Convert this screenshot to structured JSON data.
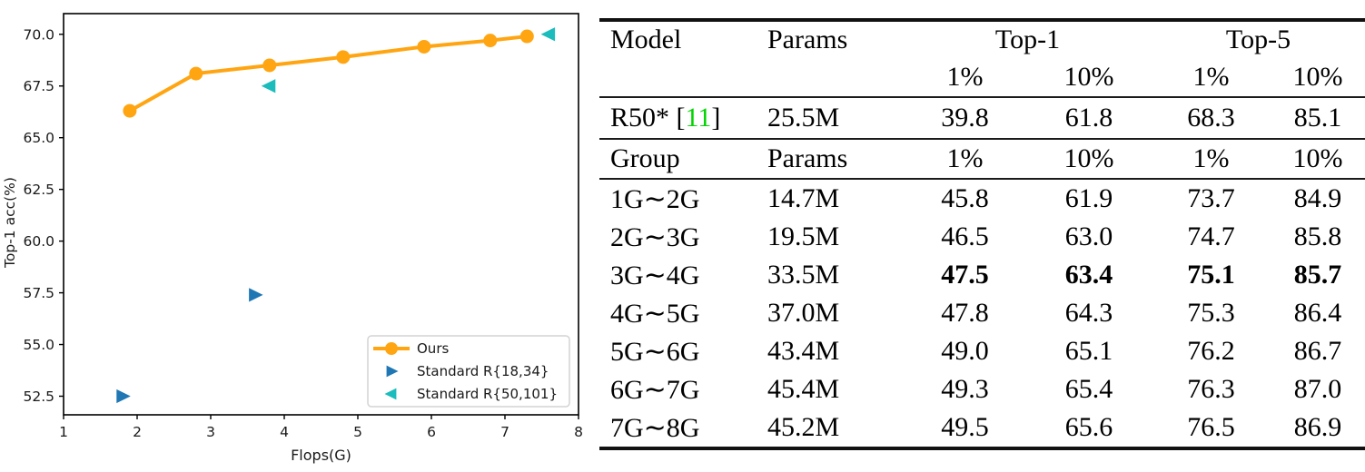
{
  "chart_data": {
    "type": "line",
    "title": "",
    "xlabel": "Flops(G)",
    "ylabel": "Top-1 acc(%)",
    "xlim": [
      1,
      8
    ],
    "ylim": [
      51.6,
      71.0
    ],
    "x_ticks": [
      1,
      2,
      3,
      4,
      5,
      6,
      7,
      8
    ],
    "x_tick_labels": [
      "1",
      "2",
      "3",
      "4",
      "5",
      "6",
      "7",
      "8"
    ],
    "y_ticks": [
      52.5,
      55.0,
      57.5,
      60.0,
      62.5,
      65.0,
      67.5,
      70.0
    ],
    "y_tick_labels": [
      "52.5",
      "55.0",
      "57.5",
      "60.0",
      "62.5",
      "65.0",
      "67.5",
      "70.0"
    ],
    "grid": false,
    "legend_position": "lower right",
    "series": [
      {
        "name": "Ours",
        "type": "line",
        "marker": "circle",
        "color": "#ffa512",
        "x": [
          1.9,
          2.8,
          3.8,
          4.8,
          5.9,
          6.8,
          7.3
        ],
        "y": [
          66.3,
          68.1,
          68.5,
          68.9,
          69.4,
          69.7,
          69.9
        ]
      },
      {
        "name": "Standard R{18,34}",
        "type": "scatter",
        "marker": "triangle-right",
        "color": "#1f77b4",
        "x": [
          1.8,
          3.6
        ],
        "y": [
          52.5,
          57.4
        ]
      },
      {
        "name": "Standard R{50,101}",
        "type": "scatter",
        "marker": "triangle-left",
        "color": "#1cbcbc",
        "x": [
          3.8,
          7.6
        ],
        "y": [
          67.5,
          70.0
        ]
      }
    ]
  },
  "table": {
    "ref_color": "#00d400",
    "header": {
      "model": "Model",
      "params": "Params",
      "top1": "Top-1",
      "top5": "Top-5",
      "sub": [
        "1%",
        "10%",
        "1%",
        "10%"
      ]
    },
    "baseline": {
      "model_prefix": "R50* [",
      "ref": "11",
      "model_suffix": "]",
      "params": "25.5M",
      "values": [
        "39.8",
        "61.8",
        "68.3",
        "85.1"
      ]
    },
    "group_header": {
      "group": "Group",
      "params": "Params",
      "sub": [
        "1%",
        "10%",
        "1%",
        "10%"
      ]
    },
    "rows": [
      {
        "group": "1G∼2G",
        "params": "14.7M",
        "values": [
          "45.8",
          "61.9",
          "73.7",
          "84.9"
        ],
        "bold": false
      },
      {
        "group": "2G∼3G",
        "params": "19.5M",
        "values": [
          "46.5",
          "63.0",
          "74.7",
          "85.8"
        ],
        "bold": false
      },
      {
        "group": "3G∼4G",
        "params": "33.5M",
        "values": [
          "47.5",
          "63.4",
          "75.1",
          "85.7"
        ],
        "bold": true
      },
      {
        "group": "4G∼5G",
        "params": "37.0M",
        "values": [
          "47.8",
          "64.3",
          "75.3",
          "86.4"
        ],
        "bold": false
      },
      {
        "group": "5G∼6G",
        "params": "43.4M",
        "values": [
          "49.0",
          "65.1",
          "76.2",
          "86.7"
        ],
        "bold": false
      },
      {
        "group": "6G∼7G",
        "params": "45.4M",
        "values": [
          "49.3",
          "65.4",
          "76.3",
          "87.0"
        ],
        "bold": false
      },
      {
        "group": "7G∼8G",
        "params": "45.2M",
        "values": [
          "49.5",
          "65.6",
          "76.5",
          "86.9"
        ],
        "bold": false
      }
    ]
  }
}
